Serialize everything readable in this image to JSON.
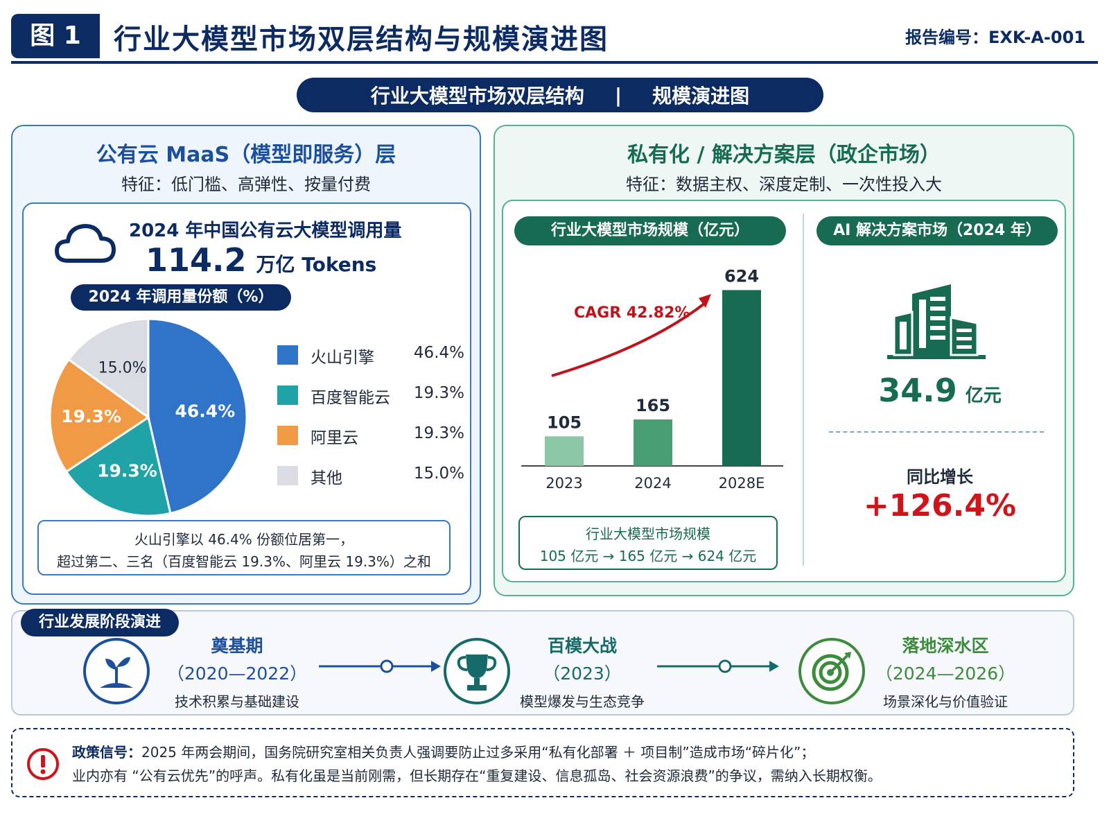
{
  "header": {
    "figure_label": "图 1",
    "title": "行业大模型市场双层结构与规模演进图",
    "report_no": "报告编号：EXK-A-001"
  },
  "subtitle": {
    "left": "行业大模型市场双层结构",
    "sep": "|",
    "right": "规模演进图"
  },
  "left_panel": {
    "title": "公有云 MaaS（模型即服务）层",
    "feature": "特征：低门槛、高弹性、按量付费",
    "calls_title": "2024 年中国公有云大模型调用量",
    "calls_value": "114.2",
    "calls_unit": "万亿 Tokens",
    "share_title": "2024 年调用量份额（%）",
    "note_line1": "火山引擎以 46.4% 份额位居第一，",
    "note_line2": "超过第二、三名（百度智能云 19.3%、阿里云 19.3%）之和"
  },
  "right_panel": {
    "title": "私有化 / 解决方案层（政企市场）",
    "feature": "特征：数据主权、深度定制、一次性投入大",
    "market_title": "行业大模型市场规模（亿元）",
    "cagr": "CAGR 42.82%",
    "scale_line1": "行业大模型市场规模",
    "scale_line2": "105 亿元 → 165 亿元 → 624 亿元",
    "ai_title": "AI 解决方案市场（2024 年）",
    "ai_value": "34.9",
    "ai_unit": "亿元",
    "yoy_label": "同比增长",
    "yoy_value": "+126.4%"
  },
  "chart_data": [
    {
      "type": "pie",
      "title": "2024 年调用量份额（%）",
      "categories": [
        "火山引擎",
        "百度智能云",
        "阿里云",
        "其他"
      ],
      "values": [
        46.4,
        19.3,
        19.3,
        15.0
      ],
      "value_labels": [
        "46.4%",
        "19.3%",
        "19.3%",
        "15.0%"
      ],
      "colors": [
        "#2f74c8",
        "#1fa3a6",
        "#f09a45",
        "#d9dde3"
      ],
      "legend_position": "right"
    },
    {
      "type": "bar",
      "title": "行业大模型市场规模（亿元）",
      "categories": [
        "2023",
        "2024",
        "2028E"
      ],
      "values": [
        105,
        165,
        624
      ],
      "value_labels": [
        "105",
        "165",
        "624"
      ],
      "colors": [
        "#8cc7a8",
        "#4a9e73",
        "#166b52"
      ],
      "annotation": "CAGR 42.82%",
      "ylim": [
        0,
        680
      ],
      "grid": false
    }
  ],
  "stages": {
    "title": "行业发展阶段演进",
    "items": [
      {
        "name": "奠基期",
        "period": "（2020—2022）",
        "desc": "技术积累与基础建设",
        "color": "#1c4f9c",
        "icon": "sprout-icon"
      },
      {
        "name": "百模大战",
        "period": "（2023）",
        "desc": "模型爆发与生态竞争",
        "color": "#166b6a",
        "icon": "trophy-icon"
      },
      {
        "name": "落地深水区",
        "period": "（2024—2026）",
        "desc": "场景深化与价值验证",
        "color": "#3d8b3d",
        "icon": "target-icon"
      }
    ]
  },
  "policy": {
    "label": "政策信号：",
    "line1": "2025 年两会期间，国务院研究室相关负责人强调要防止过多采用“私有化部署 ＋ 项目制”造成市场“碎片化”；",
    "line2": "业内亦有 “公有云优先”的呼声。私有化虽是当前刚需，但长期存在“重复建设、信息孤岛、社会资源浪费”的争议，需纳入长期权衡。"
  }
}
